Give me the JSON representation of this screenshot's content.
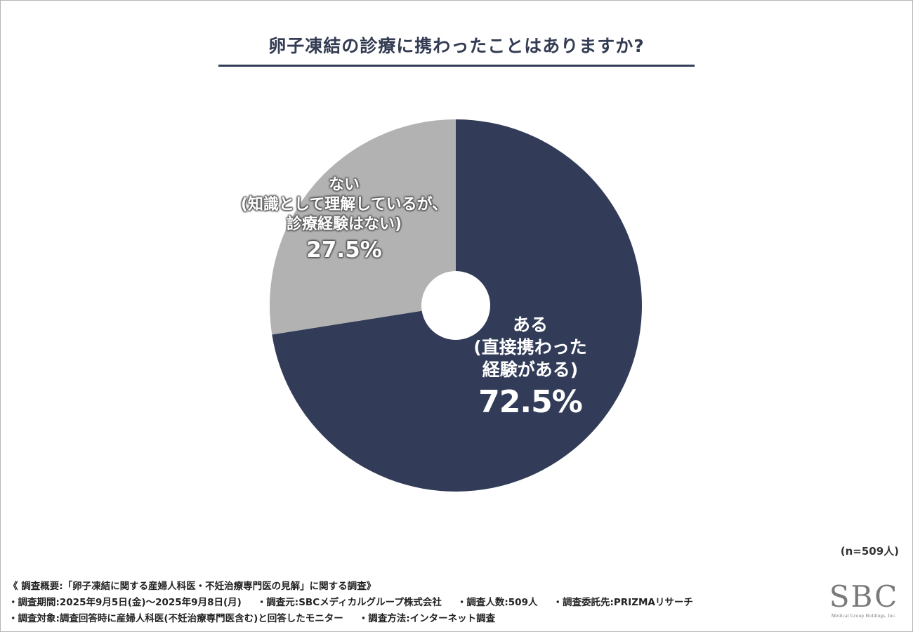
{
  "chart_data": {
    "type": "pie",
    "title": "卵子凍結の診療に携わったことはありますか?",
    "sample_size": "(n=509人)",
    "slices": [
      {
        "lines": [
          "ある",
          "(直接携わった",
          "経験がある)"
        ],
        "value": 72.5,
        "value_label": "72.5%",
        "color": "#323c58"
      },
      {
        "lines": [
          "ない",
          "(知識として理解しているが、",
          "診療経験はない)"
        ],
        "value": 27.5,
        "value_label": "27.5%",
        "color": "#b2b2b2"
      }
    ]
  },
  "notes": {
    "line1": "《 調査概要:「卵子凍結に関する産婦人科医・不妊治療専門医の見解」に関する調査》",
    "line2": [
      "・調査期間:2025年9月5日(金)〜2025年9月8日(月)",
      "・調査元:SBCメディカルグループ株式会社",
      "・調査人数:509人",
      "・調査委託先:PRIZMAリサーチ"
    ],
    "line3": [
      "・調査対象:調査回答時に産婦人科医(不妊治療専門医含む)と回答したモニター",
      "・調査方法:インターネット調査"
    ]
  },
  "logo": {
    "main": "SBC",
    "sub": "Medical Group Holdings, Inc."
  }
}
